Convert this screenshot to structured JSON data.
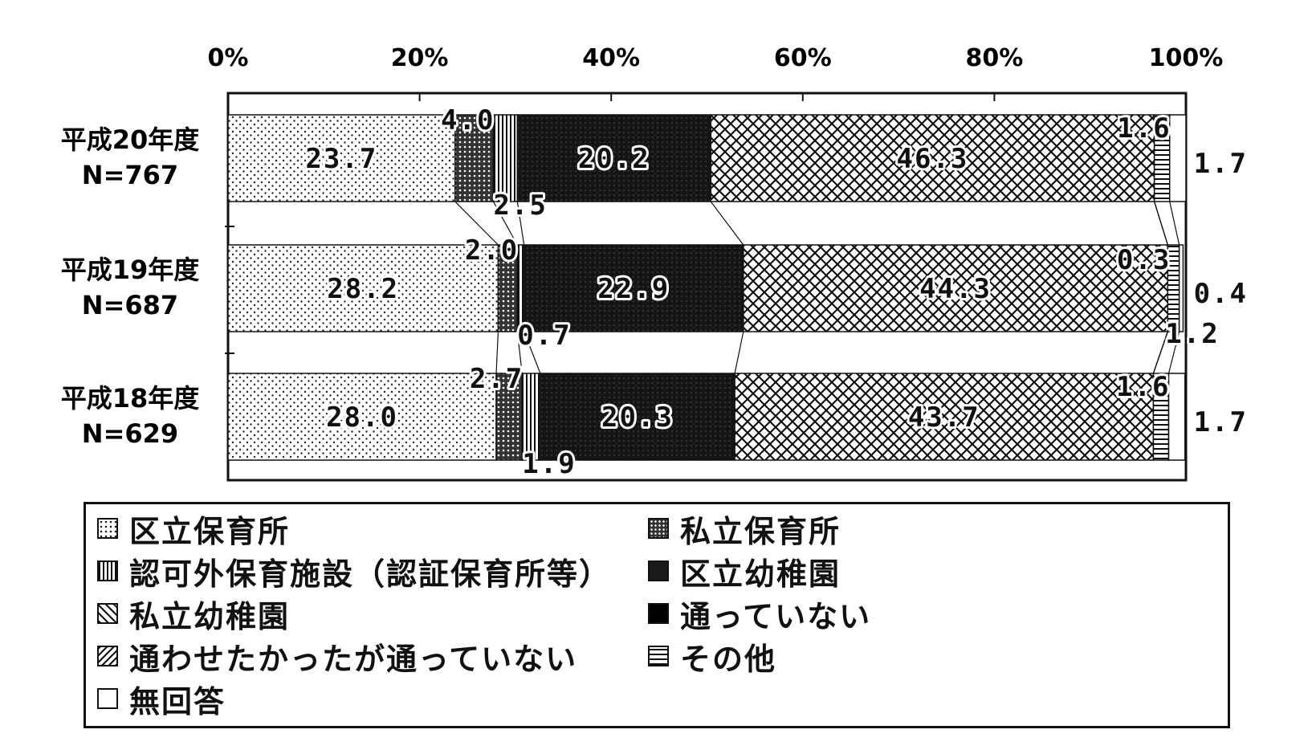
{
  "chart_data": {
    "type": "bar",
    "orientation": "horizontal",
    "stacked": true,
    "unit": "%",
    "xlim": [
      0,
      100
    ],
    "x_ticks": [
      "0%",
      "20%",
      "40%",
      "60%",
      "80%",
      "100%"
    ],
    "categories": [
      {
        "label": "平成20年度",
        "n": "N=767"
      },
      {
        "label": "平成19年度",
        "n": "N=687"
      },
      {
        "label": "平成18年度",
        "n": "N=629"
      }
    ],
    "series": [
      {
        "name": "区立保育所",
        "pattern": "dots",
        "values": [
          23.7,
          28.2,
          28.0
        ],
        "labels": [
          "23.7",
          "28.2",
          "28.0"
        ]
      },
      {
        "name": "私立保育所",
        "pattern": "dense-dots",
        "values": [
          4.0,
          2.0,
          2.7
        ],
        "labels": [
          "4.0",
          "2.0",
          "2.7"
        ]
      },
      {
        "name": "認可外保育施設（認証保育所等）",
        "pattern": "vertical-lines",
        "values": [
          2.5,
          0.7,
          1.9
        ],
        "labels": [
          "2.5",
          "0.7",
          "1.9"
        ]
      },
      {
        "name": "区立幼稚園",
        "pattern": "dark",
        "values": [
          20.2,
          22.9,
          20.3
        ],
        "labels": [
          "20.2",
          "22.9",
          "20.3"
        ]
      },
      {
        "name": "私立幼稚園",
        "pattern": "crosshatch",
        "values": [
          46.3,
          44.3,
          43.7
        ],
        "labels": [
          "46.3",
          "44.3",
          "43.7"
        ]
      },
      {
        "name": "通わせたかったが通っていない",
        "pattern": "zigzag",
        "values": [
          0,
          0,
          0
        ],
        "labels": [
          "",
          "",
          ""
        ]
      },
      {
        "name": "通っていない",
        "pattern": "black",
        "values": [
          0,
          0,
          0
        ],
        "labels": [
          "",
          "",
          ""
        ]
      },
      {
        "name": "その他",
        "pattern": "horizontal-lines",
        "values": [
          1.6,
          1.2,
          1.6
        ],
        "labels": [
          "1.6",
          "1.2",
          "1.6"
        ]
      },
      {
        "name": "無回答",
        "pattern": "white",
        "values": [
          1.7,
          0.4,
          1.7
        ],
        "labels": [
          "1.7",
          "0.4",
          "1.7"
        ]
      }
    ],
    "extra_labels": [
      {
        "category_index": 1,
        "series_index": 7,
        "label": "0.3"
      }
    ],
    "legend_position": "bottom",
    "legend_columns": [
      [
        "区立保育所",
        "認可外保育施設（認証保育所等）",
        "私立幼稚園",
        "通わせたかったが通っていない",
        "無回答"
      ],
      [
        "私立保育所",
        "区立幼稚園",
        "通っていない",
        "その他"
      ]
    ],
    "connector_lines": true,
    "grid": false
  }
}
